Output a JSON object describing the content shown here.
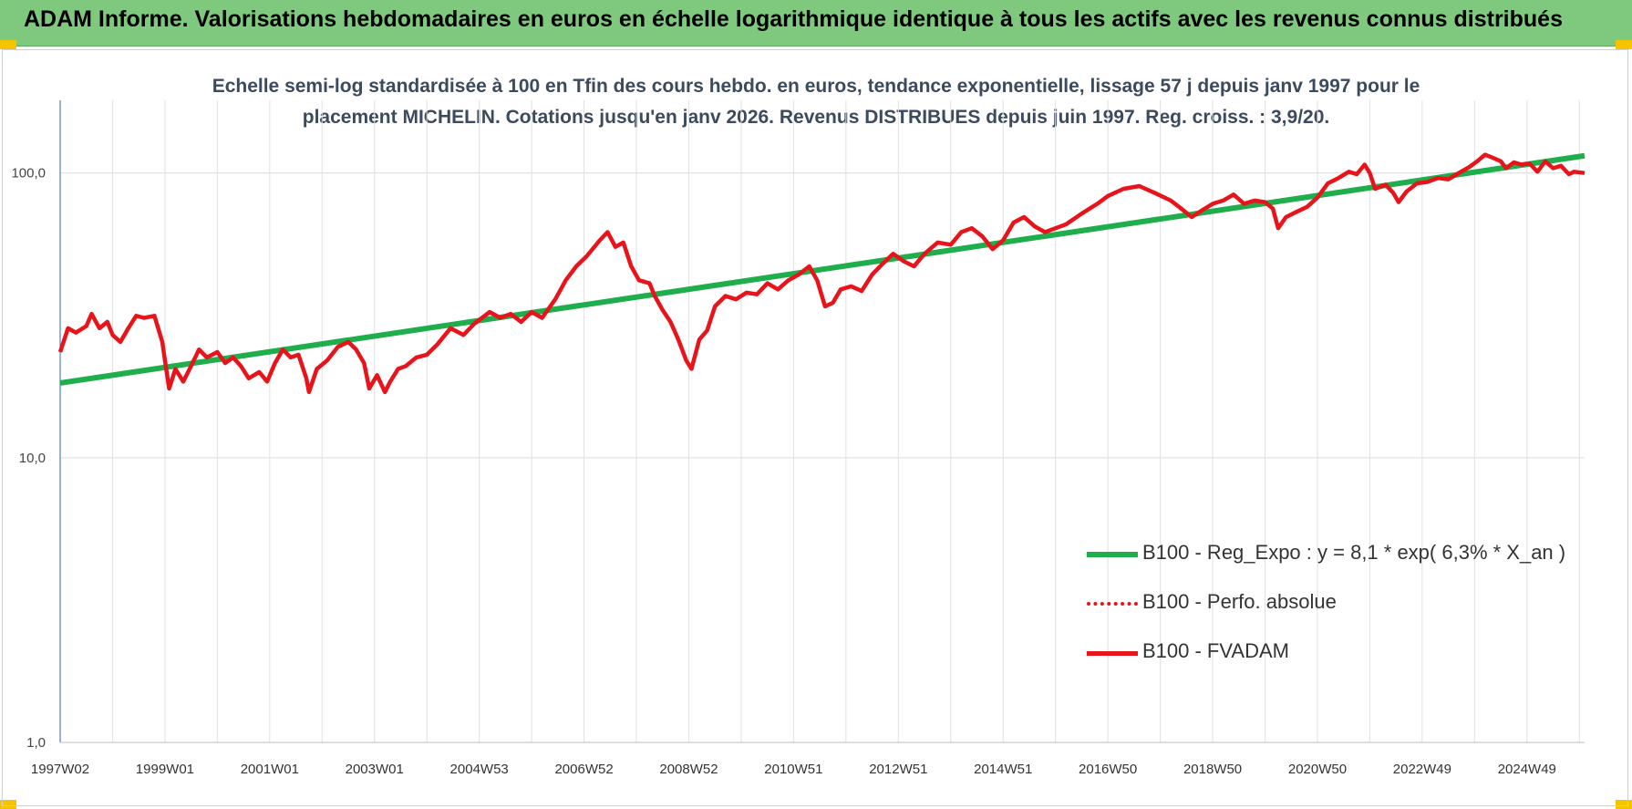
{
  "header": {
    "title": "ADAM Informe. Valorisations hebdomadaires en euros en échelle logarithmique identique à tous les actifs avec les revenus connus distribués"
  },
  "subtitle": {
    "line1": "Echelle semi-log standardisée à 100 en Tfin des cours hebdo. en euros, tendance exponentielle, lissage 57 j depuis janv 1997 pour le",
    "line2": "placement MICHELIN.  Cotations jusqu'en janv 2026.  Revenus DISTRIBUES depuis juin 1997. Reg. croiss. : 3,9/20."
  },
  "colors": {
    "banner": "#7fc97f",
    "trend": "#1fae4c",
    "fvadam": "#e8141b",
    "perfo": "#e8141b",
    "corner": "#f5c400"
  },
  "chart_data": {
    "type": "line",
    "y_scale": "log",
    "ylim": [
      1,
      180
    ],
    "y_ticks": [
      {
        "value": 1,
        "label": "1,0"
      },
      {
        "value": 10,
        "label": "10,0"
      },
      {
        "value": 100,
        "label": "100,0"
      }
    ],
    "xlim": [
      1997.0,
      2026.1
    ],
    "x_ticks": [
      {
        "x": 1997.0,
        "label": "1997W02"
      },
      {
        "x": 1999.0,
        "label": "1999W01"
      },
      {
        "x": 2001.0,
        "label": "2001W01"
      },
      {
        "x": 2003.0,
        "label": "2003W01"
      },
      {
        "x": 2005.0,
        "label": "2004W53"
      },
      {
        "x": 2007.0,
        "label": "2006W52"
      },
      {
        "x": 2009.0,
        "label": "2008W52"
      },
      {
        "x": 2011.0,
        "label": "2010W51"
      },
      {
        "x": 2013.0,
        "label": "2012W51"
      },
      {
        "x": 2015.0,
        "label": "2014W51"
      },
      {
        "x": 2017.0,
        "label": "2016W50"
      },
      {
        "x": 2019.0,
        "label": "2018W50"
      },
      {
        "x": 2021.0,
        "label": "2020W50"
      },
      {
        "x": 2023.0,
        "label": "2022W49"
      },
      {
        "x": 2025.0,
        "label": "2024W49"
      }
    ],
    "grid": true,
    "legend_position": "bottom-right",
    "series": [
      {
        "name": "B100 - Reg_Expo : y = 8,1 * exp( 6,3% *  X_an )",
        "style": "solid-thick",
        "color": "#1fae4c",
        "points": [
          [
            1997.0,
            18.3
          ],
          [
            2026.1,
            115.0
          ]
        ]
      },
      {
        "name": "B100 - Perfo. absolue",
        "style": "dotted",
        "color": "#e8141b",
        "points": []
      },
      {
        "name": "B100 - FVADAM",
        "style": "solid",
        "color": "#e8141b",
        "points": [
          [
            1997.0,
            23.5
          ],
          [
            1997.15,
            28.5
          ],
          [
            1997.3,
            27.5
          ],
          [
            1997.5,
            29.0
          ],
          [
            1997.6,
            32.0
          ],
          [
            1997.75,
            28.5
          ],
          [
            1997.9,
            30.0
          ],
          [
            1998.0,
            27.0
          ],
          [
            1998.15,
            25.5
          ],
          [
            1998.3,
            28.5
          ],
          [
            1998.45,
            31.5
          ],
          [
            1998.6,
            31.0
          ],
          [
            1998.8,
            31.5
          ],
          [
            1998.95,
            25.5
          ],
          [
            1999.0,
            22.0
          ],
          [
            1999.08,
            17.5
          ],
          [
            1999.2,
            20.5
          ],
          [
            1999.35,
            18.5
          ],
          [
            1999.5,
            21.0
          ],
          [
            1999.65,
            24.0
          ],
          [
            1999.8,
            22.5
          ],
          [
            2000.0,
            23.5
          ],
          [
            2000.15,
            21.5
          ],
          [
            2000.3,
            22.5
          ],
          [
            2000.45,
            21.0
          ],
          [
            2000.6,
            19.0
          ],
          [
            2000.8,
            20.0
          ],
          [
            2000.95,
            18.5
          ],
          [
            2001.1,
            21.5
          ],
          [
            2001.25,
            24.0
          ],
          [
            2001.4,
            22.5
          ],
          [
            2001.55,
            23.0
          ],
          [
            2001.7,
            19.0
          ],
          [
            2001.75,
            17.0
          ],
          [
            2001.9,
            20.5
          ],
          [
            2002.1,
            22.0
          ],
          [
            2002.3,
            24.5
          ],
          [
            2002.5,
            25.5
          ],
          [
            2002.65,
            24.0
          ],
          [
            2002.8,
            21.5
          ],
          [
            2002.9,
            17.5
          ],
          [
            2003.05,
            19.5
          ],
          [
            2003.2,
            17.0
          ],
          [
            2003.3,
            18.5
          ],
          [
            2003.45,
            20.5
          ],
          [
            2003.6,
            21.0
          ],
          [
            2003.8,
            22.5
          ],
          [
            2004.0,
            23.0
          ],
          [
            2004.2,
            25.0
          ],
          [
            2004.45,
            28.5
          ],
          [
            2004.7,
            27.0
          ],
          [
            2004.9,
            29.5
          ],
          [
            2005.2,
            32.5
          ],
          [
            2005.4,
            31.0
          ],
          [
            2005.6,
            32.0
          ],
          [
            2005.8,
            30.0
          ],
          [
            2006.0,
            32.5
          ],
          [
            2006.2,
            31.0
          ],
          [
            2006.45,
            36.0
          ],
          [
            2006.65,
            42.0
          ],
          [
            2006.85,
            47.0
          ],
          [
            2007.05,
            51.0
          ],
          [
            2007.3,
            58.0
          ],
          [
            2007.45,
            62.0
          ],
          [
            2007.6,
            55.0
          ],
          [
            2007.75,
            57.0
          ],
          [
            2007.9,
            47.0
          ],
          [
            2008.05,
            42.0
          ],
          [
            2008.25,
            41.0
          ],
          [
            2008.35,
            37.0
          ],
          [
            2008.5,
            33.0
          ],
          [
            2008.65,
            30.0
          ],
          [
            2008.8,
            26.0
          ],
          [
            2008.95,
            22.0
          ],
          [
            2009.05,
            20.5
          ],
          [
            2009.2,
            26.0
          ],
          [
            2009.35,
            28.0
          ],
          [
            2009.5,
            34.0
          ],
          [
            2009.7,
            37.0
          ],
          [
            2009.9,
            36.0
          ],
          [
            2010.1,
            38.0
          ],
          [
            2010.3,
            37.5
          ],
          [
            2010.5,
            41.0
          ],
          [
            2010.7,
            39.0
          ],
          [
            2010.9,
            42.0
          ],
          [
            2011.1,
            44.0
          ],
          [
            2011.3,
            47.0
          ],
          [
            2011.45,
            42.0
          ],
          [
            2011.6,
            34.0
          ],
          [
            2011.75,
            35.0
          ],
          [
            2011.9,
            39.0
          ],
          [
            2012.1,
            40.0
          ],
          [
            2012.3,
            38.5
          ],
          [
            2012.5,
            44.0
          ],
          [
            2012.7,
            48.0
          ],
          [
            2012.9,
            52.0
          ],
          [
            2013.1,
            49.0
          ],
          [
            2013.3,
            47.0
          ],
          [
            2013.5,
            52.0
          ],
          [
            2013.75,
            57.0
          ],
          [
            2014.0,
            56.0
          ],
          [
            2014.2,
            62.0
          ],
          [
            2014.4,
            64.0
          ],
          [
            2014.6,
            60.0
          ],
          [
            2014.8,
            54.0
          ],
          [
            2015.0,
            58.0
          ],
          [
            2015.2,
            67.0
          ],
          [
            2015.4,
            70.0
          ],
          [
            2015.6,
            65.0
          ],
          [
            2015.8,
            62.0
          ],
          [
            2016.0,
            64.0
          ],
          [
            2016.2,
            66.0
          ],
          [
            2016.5,
            72.0
          ],
          [
            2016.8,
            78.0
          ],
          [
            2017.0,
            83.0
          ],
          [
            2017.3,
            88.0
          ],
          [
            2017.6,
            90.0
          ],
          [
            2017.9,
            85.0
          ],
          [
            2018.2,
            80.0
          ],
          [
            2018.4,
            75.0
          ],
          [
            2018.6,
            70.0
          ],
          [
            2018.8,
            74.0
          ],
          [
            2019.0,
            78.0
          ],
          [
            2019.2,
            80.0
          ],
          [
            2019.4,
            84.0
          ],
          [
            2019.6,
            78.0
          ],
          [
            2019.8,
            80.0
          ],
          [
            2020.0,
            79.0
          ],
          [
            2020.15,
            75.0
          ],
          [
            2020.25,
            64.0
          ],
          [
            2020.4,
            70.0
          ],
          [
            2020.6,
            73.0
          ],
          [
            2020.8,
            76.0
          ],
          [
            2021.0,
            82.0
          ],
          [
            2021.2,
            92.0
          ],
          [
            2021.4,
            96.0
          ],
          [
            2021.6,
            101.0
          ],
          [
            2021.75,
            99.0
          ],
          [
            2021.9,
            107.0
          ],
          [
            2022.0,
            100.0
          ],
          [
            2022.1,
            88.0
          ],
          [
            2022.3,
            91.0
          ],
          [
            2022.45,
            85.0
          ],
          [
            2022.55,
            79.0
          ],
          [
            2022.7,
            86.0
          ],
          [
            2022.9,
            92.0
          ],
          [
            2023.1,
            93.0
          ],
          [
            2023.3,
            96.0
          ],
          [
            2023.5,
            95.0
          ],
          [
            2023.7,
            100.0
          ],
          [
            2023.9,
            105.0
          ],
          [
            2024.05,
            110.0
          ],
          [
            2024.2,
            116.0
          ],
          [
            2024.35,
            113.0
          ],
          [
            2024.5,
            110.0
          ],
          [
            2024.6,
            104.0
          ],
          [
            2024.75,
            109.0
          ],
          [
            2024.9,
            107.0
          ],
          [
            2025.05,
            108.0
          ],
          [
            2025.2,
            101.0
          ],
          [
            2025.35,
            110.0
          ],
          [
            2025.5,
            104.0
          ],
          [
            2025.65,
            106.0
          ],
          [
            2025.8,
            99.0
          ],
          [
            2025.9,
            101.0
          ],
          [
            2026.1,
            100.0
          ]
        ]
      }
    ]
  }
}
